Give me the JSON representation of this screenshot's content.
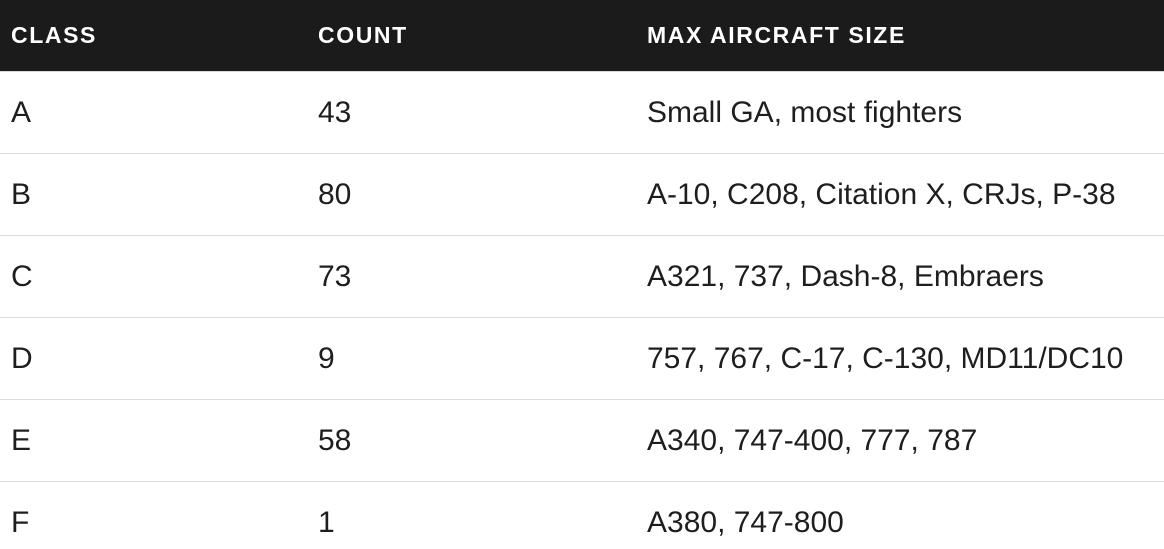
{
  "table": {
    "headers": [
      "CLASS",
      "COUNT",
      "MAX AIRCRAFT SIZE"
    ],
    "rows": [
      {
        "class": "A",
        "count": "43",
        "max_aircraft_size": "Small GA, most fighters"
      },
      {
        "class": "B",
        "count": "80",
        "max_aircraft_size": "A-10, C208, Citation X, CRJs, P-38"
      },
      {
        "class": "C",
        "count": "73",
        "max_aircraft_size": "A321, 737, Dash-8, Embraers"
      },
      {
        "class": "D",
        "count": "9",
        "max_aircraft_size": "757, 767, C-17, C-130, MD11/DC10"
      },
      {
        "class": "E",
        "count": "58",
        "max_aircraft_size": "A340, 747-400, 777, 787"
      },
      {
        "class": "F",
        "count": "1",
        "max_aircraft_size": "A380, 747-800"
      }
    ]
  },
  "colors": {
    "header_bg": "#1b1b1b",
    "header_text": "#ffffff",
    "row_divider": "#dcdcdc",
    "body_text": "#1e1e1e"
  }
}
